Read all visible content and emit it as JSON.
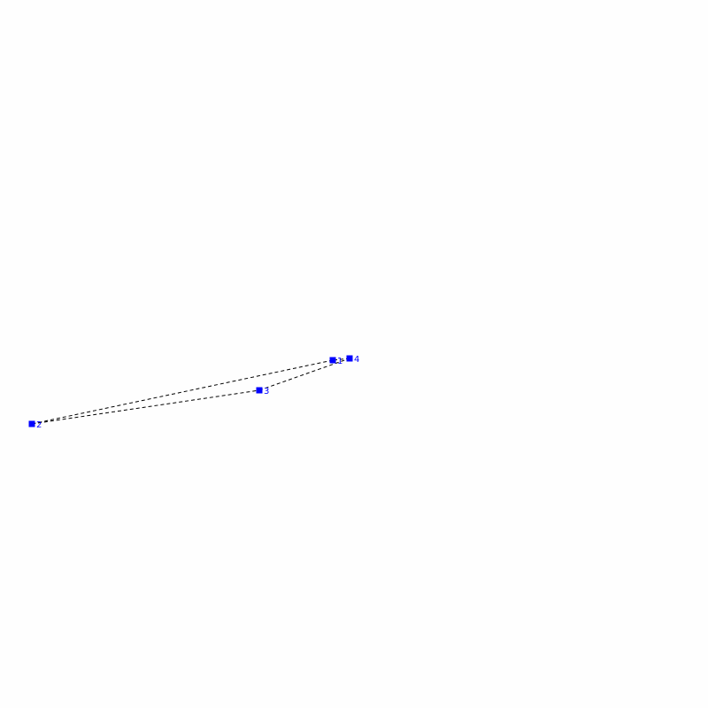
{
  "diagram": {
    "point_color": "#0000ff",
    "line_color": "#000000",
    "line_style": "dashed",
    "closed": true,
    "nodes": [
      {
        "label": "1"
      },
      {
        "label": "2"
      },
      {
        "label": "3"
      },
      {
        "label": "4"
      }
    ]
  }
}
